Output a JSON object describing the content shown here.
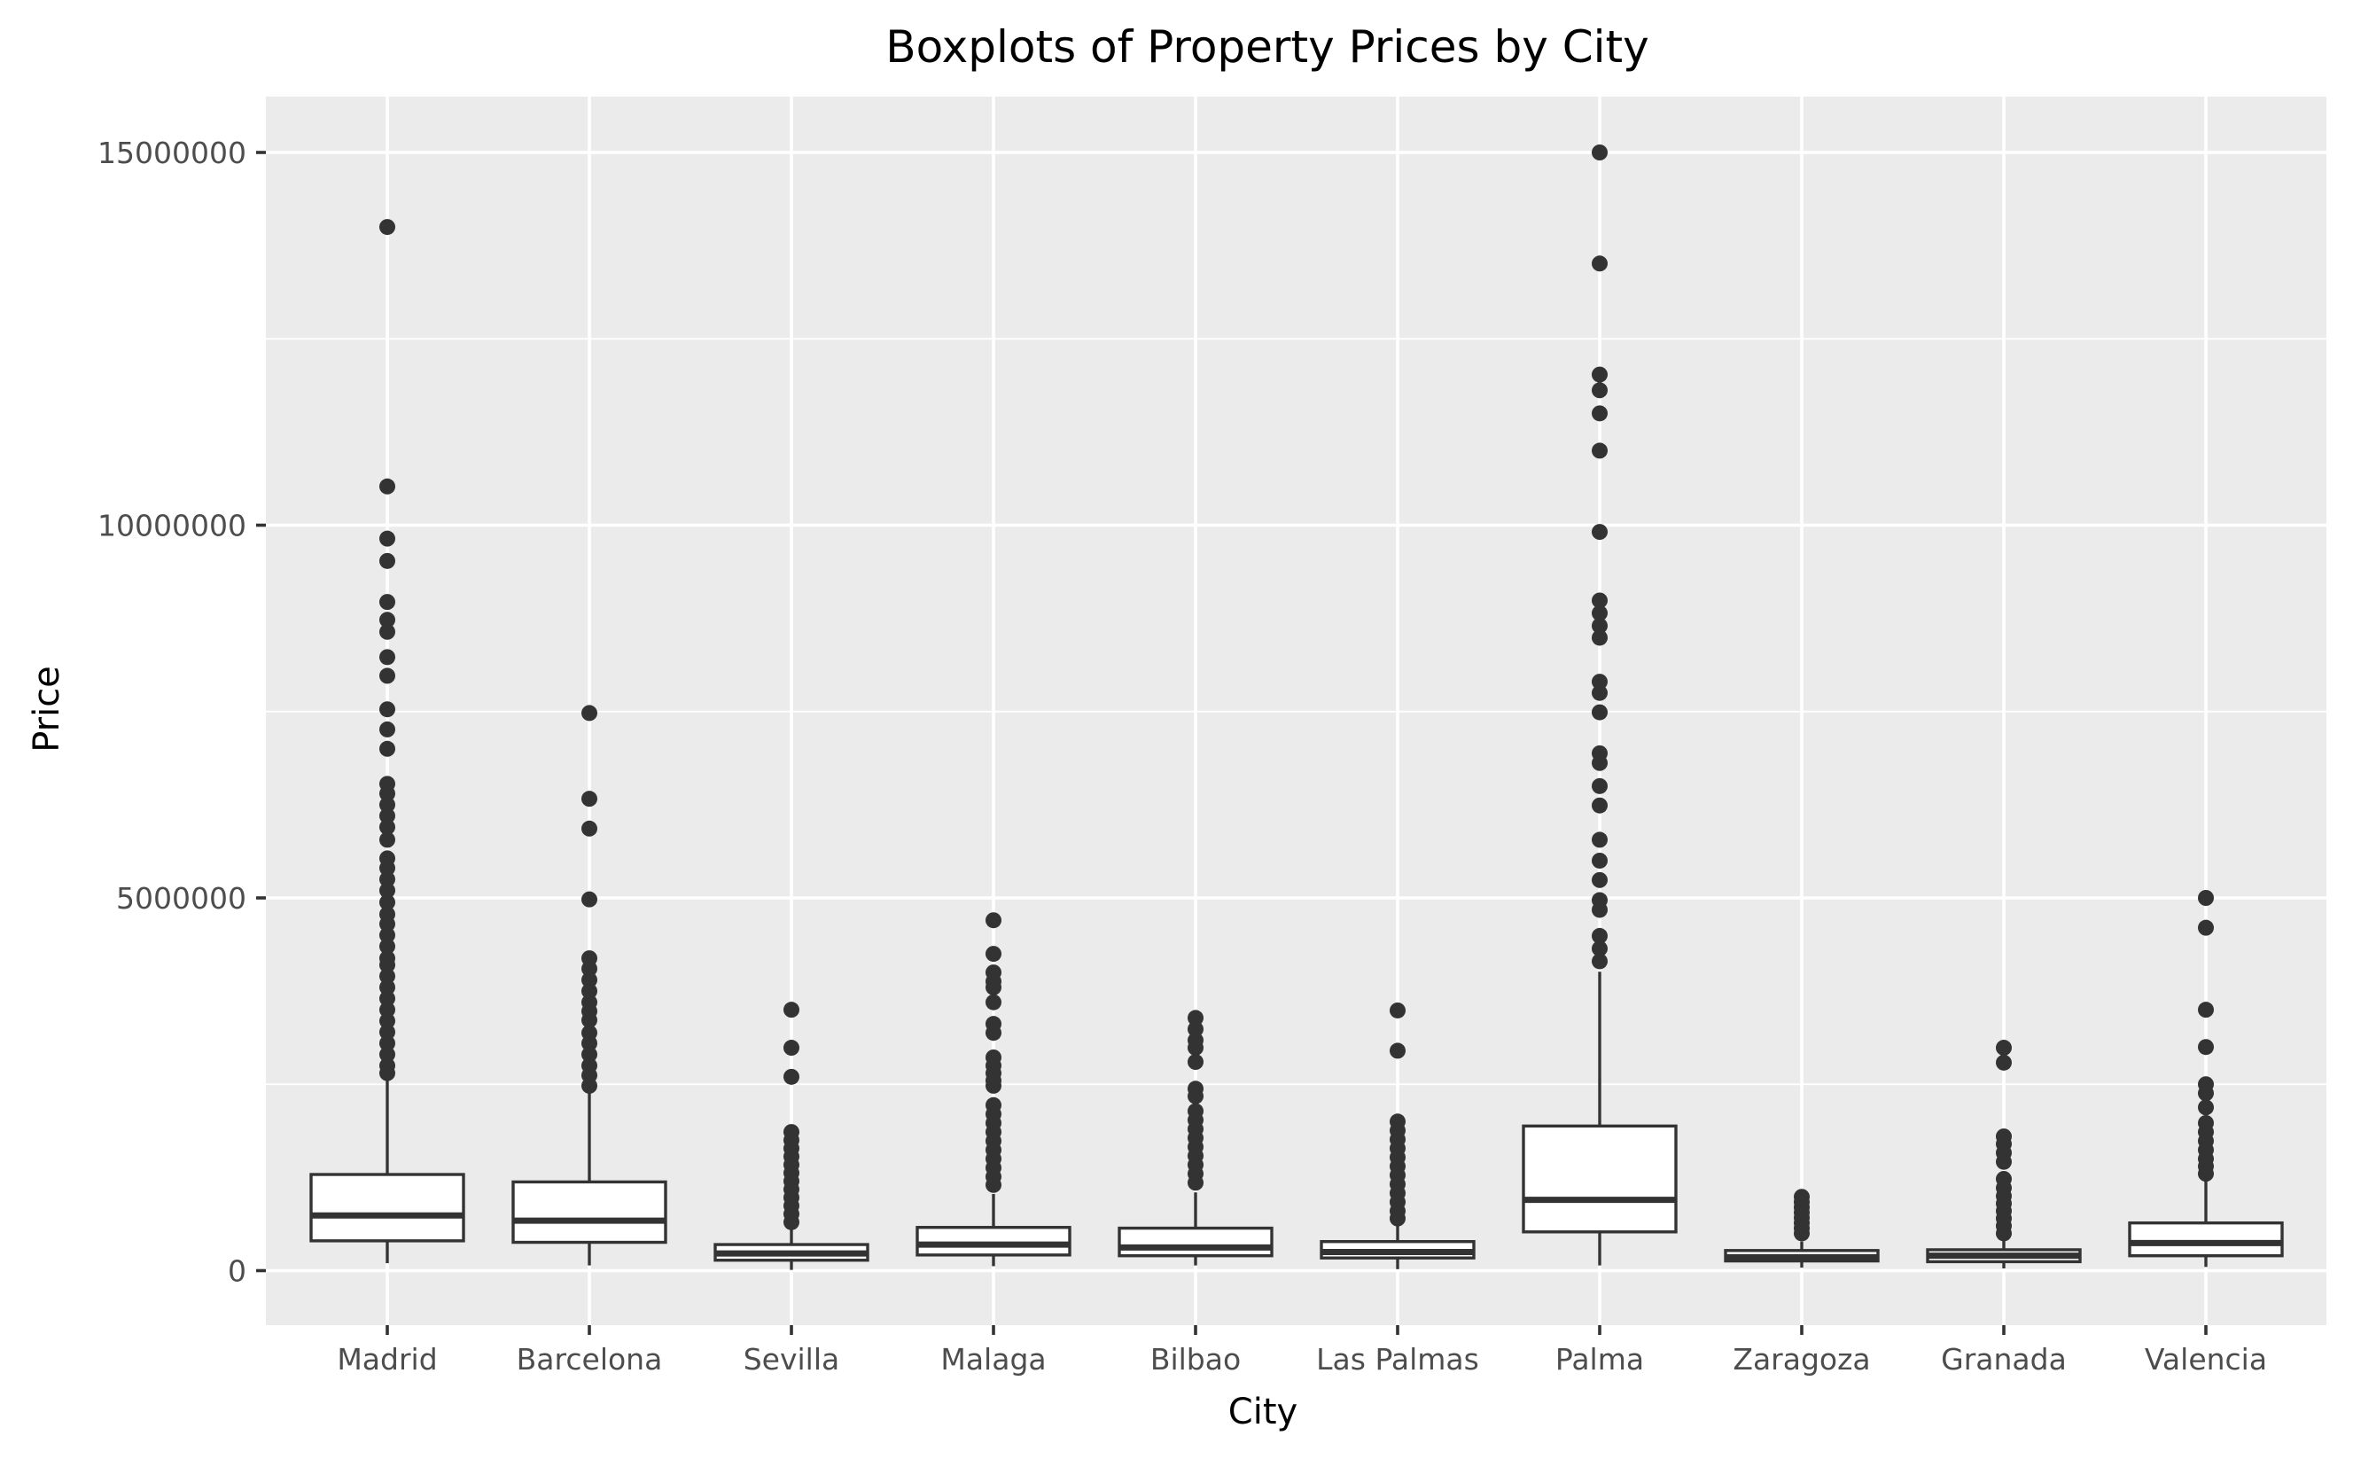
{
  "chart_data": {
    "type": "box",
    "title": "Boxplots of Property Prices by City",
    "xlabel": "City",
    "ylabel": "Price",
    "ylim": [
      -1300000,
      15750000
    ],
    "yticks": [
      0,
      5000000,
      10000000,
      15000000
    ],
    "ytick_labels": [
      "0",
      "5000000",
      "10000000",
      "15000000"
    ],
    "y_minor_gridlines": [
      2500000,
      7500000,
      12500000
    ],
    "grid": true,
    "legend": null,
    "categories": [
      "Madrid",
      "Barcelona",
      "Sevilla",
      "Malaga",
      "Bilbao",
      "Las Palmas",
      "Palma",
      "Zaragoza",
      "Granada",
      "Valencia"
    ],
    "boxes": [
      {
        "city": "Madrid",
        "whisker_low": 100000,
        "q1": 400000,
        "median": 740000,
        "q3": 1290000,
        "whisker_high": 2560000,
        "outliers": [
          14000000,
          10520000,
          9820000,
          9520000,
          8970000,
          8730000,
          8570000,
          8230000,
          7980000,
          7530000,
          7260000,
          7000000,
          6530000,
          6400000,
          6250000,
          6100000,
          5950000,
          5780000,
          5530000,
          5400000,
          5250000,
          5100000,
          4940000,
          4780000,
          4650000,
          4500000,
          4350000,
          4190000,
          4100000,
          3950000,
          3800000,
          3650000,
          3500000,
          3350000,
          3200000,
          3050000,
          2900000,
          2750000,
          2650000
        ]
      },
      {
        "city": "Barcelona",
        "whisker_low": 70000,
        "q1": 380000,
        "median": 670000,
        "q3": 1190000,
        "whisker_high": 2380000,
        "outliers": [
          7480000,
          6330000,
          5930000,
          4980000,
          4190000,
          4050000,
          3900000,
          3750000,
          3600000,
          3480000,
          3360000,
          3190000,
          3050000,
          2900000,
          2750000,
          2620000,
          2480000
        ]
      },
      {
        "city": "Sevilla",
        "whisker_low": 10000,
        "q1": 140000,
        "median": 230000,
        "q3": 350000,
        "whisker_high": 550000,
        "outliers": [
          3500000,
          2990000,
          2600000,
          1860000,
          1750000,
          1640000,
          1530000,
          1420000,
          1310000,
          1200000,
          1090000,
          980000,
          870000,
          760000,
          650000
        ]
      },
      {
        "city": "Malaga",
        "whisker_low": 60000,
        "q1": 210000,
        "median": 350000,
        "q3": 580000,
        "whisker_high": 1030000,
        "outliers": [
          4700000,
          4250000,
          4000000,
          3880000,
          3800000,
          3600000,
          3310000,
          3190000,
          2860000,
          2750000,
          2650000,
          2550000,
          2480000,
          2220000,
          2100000,
          1980000,
          1860000,
          1740000,
          1620000,
          1500000,
          1380000,
          1260000,
          1150000
        ]
      },
      {
        "city": "Bilbao",
        "whisker_low": 70000,
        "q1": 200000,
        "median": 310000,
        "q3": 570000,
        "whisker_high": 1050000,
        "outliers": [
          3390000,
          3240000,
          3090000,
          2990000,
          2800000,
          2440000,
          2340000,
          2140000,
          2020000,
          1900000,
          1780000,
          1660000,
          1540000,
          1420000,
          1300000,
          1180000
        ]
      },
      {
        "city": "Las Palmas",
        "whisker_low": 20000,
        "q1": 170000,
        "median": 250000,
        "q3": 390000,
        "whisker_high": 650000,
        "outliers": [
          3490000,
          2950000,
          2000000,
          1880000,
          1760000,
          1640000,
          1520000,
          1400000,
          1280000,
          1160000,
          1040000,
          920000,
          800000,
          700000
        ]
      },
      {
        "city": "Palma",
        "whisker_low": 70000,
        "q1": 520000,
        "median": 950000,
        "q3": 1940000,
        "whisker_high": 4010000,
        "outliers": [
          15000000,
          13510000,
          12020000,
          11810000,
          11500000,
          11000000,
          9910000,
          8990000,
          8820000,
          8650000,
          8490000,
          7900000,
          7750000,
          7490000,
          6940000,
          6810000,
          6500000,
          6240000,
          5780000,
          5500000,
          5240000,
          4970000,
          4840000,
          4490000,
          4320000,
          4150000
        ]
      },
      {
        "city": "Zaragoza",
        "whisker_low": 40000,
        "q1": 130000,
        "median": 180000,
        "q3": 270000,
        "whisker_high": 390000,
        "outliers": [
          990000,
          920000,
          850000,
          780000,
          710000,
          640000,
          570000,
          500000
        ]
      },
      {
        "city": "Granada",
        "whisker_low": 30000,
        "q1": 120000,
        "median": 200000,
        "q3": 280000,
        "whisker_high": 470000,
        "outliers": [
          2990000,
          2790000,
          1800000,
          1700000,
          1580000,
          1460000,
          1230000,
          1110000,
          1000000,
          900000,
          800000,
          700000,
          600000,
          500000
        ]
      },
      {
        "city": "Valencia",
        "whisker_low": 50000,
        "q1": 200000,
        "median": 370000,
        "q3": 640000,
        "whisker_high": 1250000,
        "outliers": [
          5000000,
          4600000,
          3500000,
          3000000,
          2500000,
          2380000,
          2190000,
          1980000,
          1860000,
          1740000,
          1620000,
          1500000,
          1400000,
          1300000
        ]
      }
    ]
  },
  "colors": {
    "panel_background": "#ebebeb",
    "gridline": "#ffffff",
    "box_fill": "#ffffff",
    "box_outline": "#333333",
    "outlier": "#333333",
    "tick_label": "#4d4d4d",
    "axis_title": "#000000"
  }
}
